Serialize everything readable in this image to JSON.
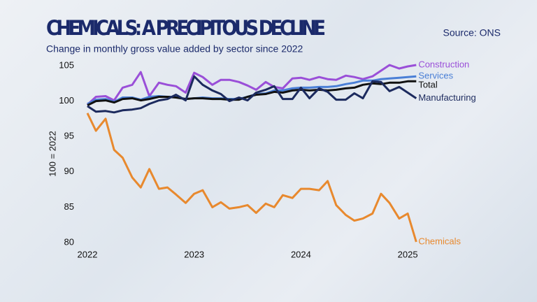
{
  "chart_data": {
    "type": "line",
    "title": "CHEMICALS: A PRECIPITOUS DECLINE",
    "subtitle": "Change in monthly gross value added by sector since 2022",
    "source": "Source: ONS",
    "y_label": "100 = 2022",
    "x": [
      2022,
      2022.08,
      2022.17,
      2022.25,
      2022.33,
      2022.42,
      2022.5,
      2022.58,
      2022.67,
      2022.75,
      2022.83,
      2022.92,
      2023,
      2023.08,
      2023.17,
      2023.25,
      2023.33,
      2023.42,
      2023.5,
      2023.58,
      2023.67,
      2023.75,
      2023.83,
      2023.92,
      2024,
      2024.08,
      2024.17,
      2024.25,
      2024.33,
      2024.42,
      2024.5,
      2024.58,
      2024.67,
      2024.75,
      2024.83,
      2024.92,
      2025,
      2025.08
    ],
    "xlim": [
      2022,
      2025.2
    ],
    "xticks": [
      2022,
      2023,
      2024,
      2025
    ],
    "ylim": [
      80,
      105
    ],
    "yticks": [
      80,
      85,
      90,
      95,
      100,
      105
    ],
    "grid": false,
    "series": [
      {
        "name": "Construction",
        "color": "#9a4fd8",
        "values": [
          99.5,
          100.6,
          100.7,
          100.1,
          101.9,
          102.3,
          104.1,
          100.7,
          102.6,
          102.3,
          102.1,
          101.2,
          104,
          103.4,
          102.3,
          103,
          103,
          102.7,
          102.2,
          101.6,
          102.7,
          102,
          101.8,
          103.2,
          103.3,
          103,
          103.4,
          103.1,
          103,
          103.6,
          103.4,
          103.1,
          103.5,
          104.3,
          105.1,
          104.6,
          104.9,
          105.1
        ]
      },
      {
        "name": "Services",
        "color": "#4a7fd6",
        "values": [
          99.6,
          100.2,
          100.3,
          99.9,
          100.5,
          100.5,
          100.2,
          100.6,
          100.7,
          100.6,
          100.6,
          100.3,
          100.4,
          100.5,
          100.4,
          100.4,
          100.3,
          100.3,
          100.6,
          101,
          101.1,
          101.5,
          101.5,
          101.8,
          101.9,
          101.9,
          102,
          102,
          102.1,
          102.4,
          102.6,
          102.9,
          102.9,
          103.1,
          103.2,
          103.3,
          103.4,
          103.5
        ]
      },
      {
        "name": "Total",
        "color": "#111111",
        "values": [
          99.4,
          100,
          100.1,
          99.8,
          100.3,
          100.4,
          100.1,
          100.3,
          100.6,
          100.6,
          100.5,
          100.3,
          100.4,
          100.4,
          100.3,
          100.3,
          100.2,
          100.2,
          100.6,
          100.9,
          101,
          101.3,
          101.2,
          101.5,
          101.6,
          101.5,
          101.6,
          101.5,
          101.6,
          101.8,
          101.9,
          102.3,
          102.5,
          102.4,
          102.6,
          102.6,
          102.8,
          102.8
        ]
      },
      {
        "name": "Manufacturing",
        "color": "#1c2a5e",
        "values": [
          99.3,
          98.5,
          98.6,
          98.4,
          98.7,
          98.8,
          99,
          99.6,
          100.1,
          100.3,
          100.9,
          100.1,
          103.5,
          102.3,
          101.5,
          101,
          100,
          100.5,
          100.1,
          101.2,
          101.6,
          102.1,
          100.3,
          100.3,
          101.9,
          100.4,
          101.8,
          101.3,
          100.2,
          100.2,
          101.1,
          100.4,
          102.8,
          102.7,
          101.4,
          102,
          101.2,
          100.4
        ]
      },
      {
        "name": "Chemicals",
        "color": "#e8892e",
        "values": [
          98.3,
          95.8,
          97.5,
          93.1,
          92,
          89.2,
          87.8,
          90.4,
          87.6,
          87.8,
          86.8,
          85.6,
          86.9,
          87.4,
          85,
          85.7,
          84.8,
          85,
          85.3,
          84.2,
          85.5,
          85,
          86.7,
          86.3,
          87.6,
          87.6,
          87.4,
          88.7,
          85.3,
          83.9,
          83.1,
          83.4,
          84.1,
          86.9,
          85.6,
          83.4,
          84.1,
          80.1
        ]
      }
    ]
  }
}
